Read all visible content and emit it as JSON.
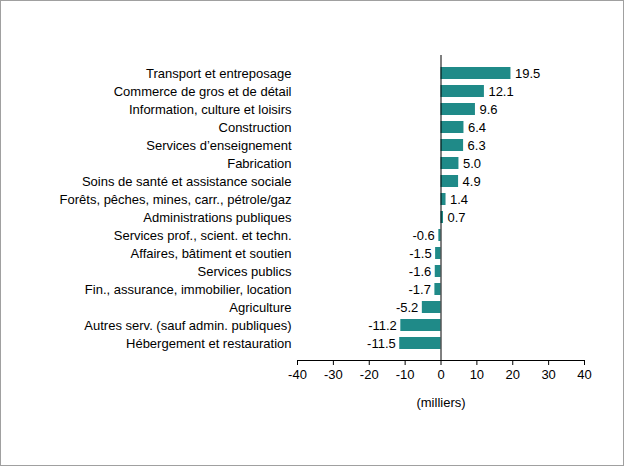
{
  "chart_data": {
    "type": "bar",
    "orientation": "horizontal",
    "categories": [
      "Transport et entreposage",
      "Commerce de gros et de détail",
      "Information, culture et loisirs",
      "Construction",
      "Services d’enseignement",
      "Fabrication",
      "Soins de santé et assistance sociale",
      "Forêts, pêches, mines, carr., pétrole/gaz",
      "Administrations publiques",
      "Services prof., scient. et techn.",
      "Affaires, bâtiment et soutien",
      "Services publics",
      "Fin., assurance, immobilier, location",
      "Agriculture",
      "Autres serv. (sauf admin. publiques)",
      "Hébergement et restauration"
    ],
    "values": [
      19.5,
      12.1,
      9.6,
      6.4,
      6.3,
      5.0,
      4.9,
      1.4,
      0.7,
      -0.6,
      -1.5,
      -1.6,
      -1.7,
      -5.2,
      -11.2,
      -11.5
    ],
    "value_labels": [
      "19.5",
      "12.1",
      "9.6",
      "6.4",
      "6.3",
      "5.0",
      "4.9",
      "1.4",
      "0.7",
      "-0.6",
      "-1.5",
      "-1.6",
      "-1.7",
      "-5.2",
      "-11.2",
      "-11.5"
    ],
    "data_labels": true,
    "color": "#1f8a88",
    "x_label": "(milliers)",
    "xlim": [
      -40,
      40
    ],
    "xticks": [
      -40,
      -30,
      -20,
      -10,
      0,
      10,
      20,
      30,
      40
    ],
    "grid": false
  }
}
